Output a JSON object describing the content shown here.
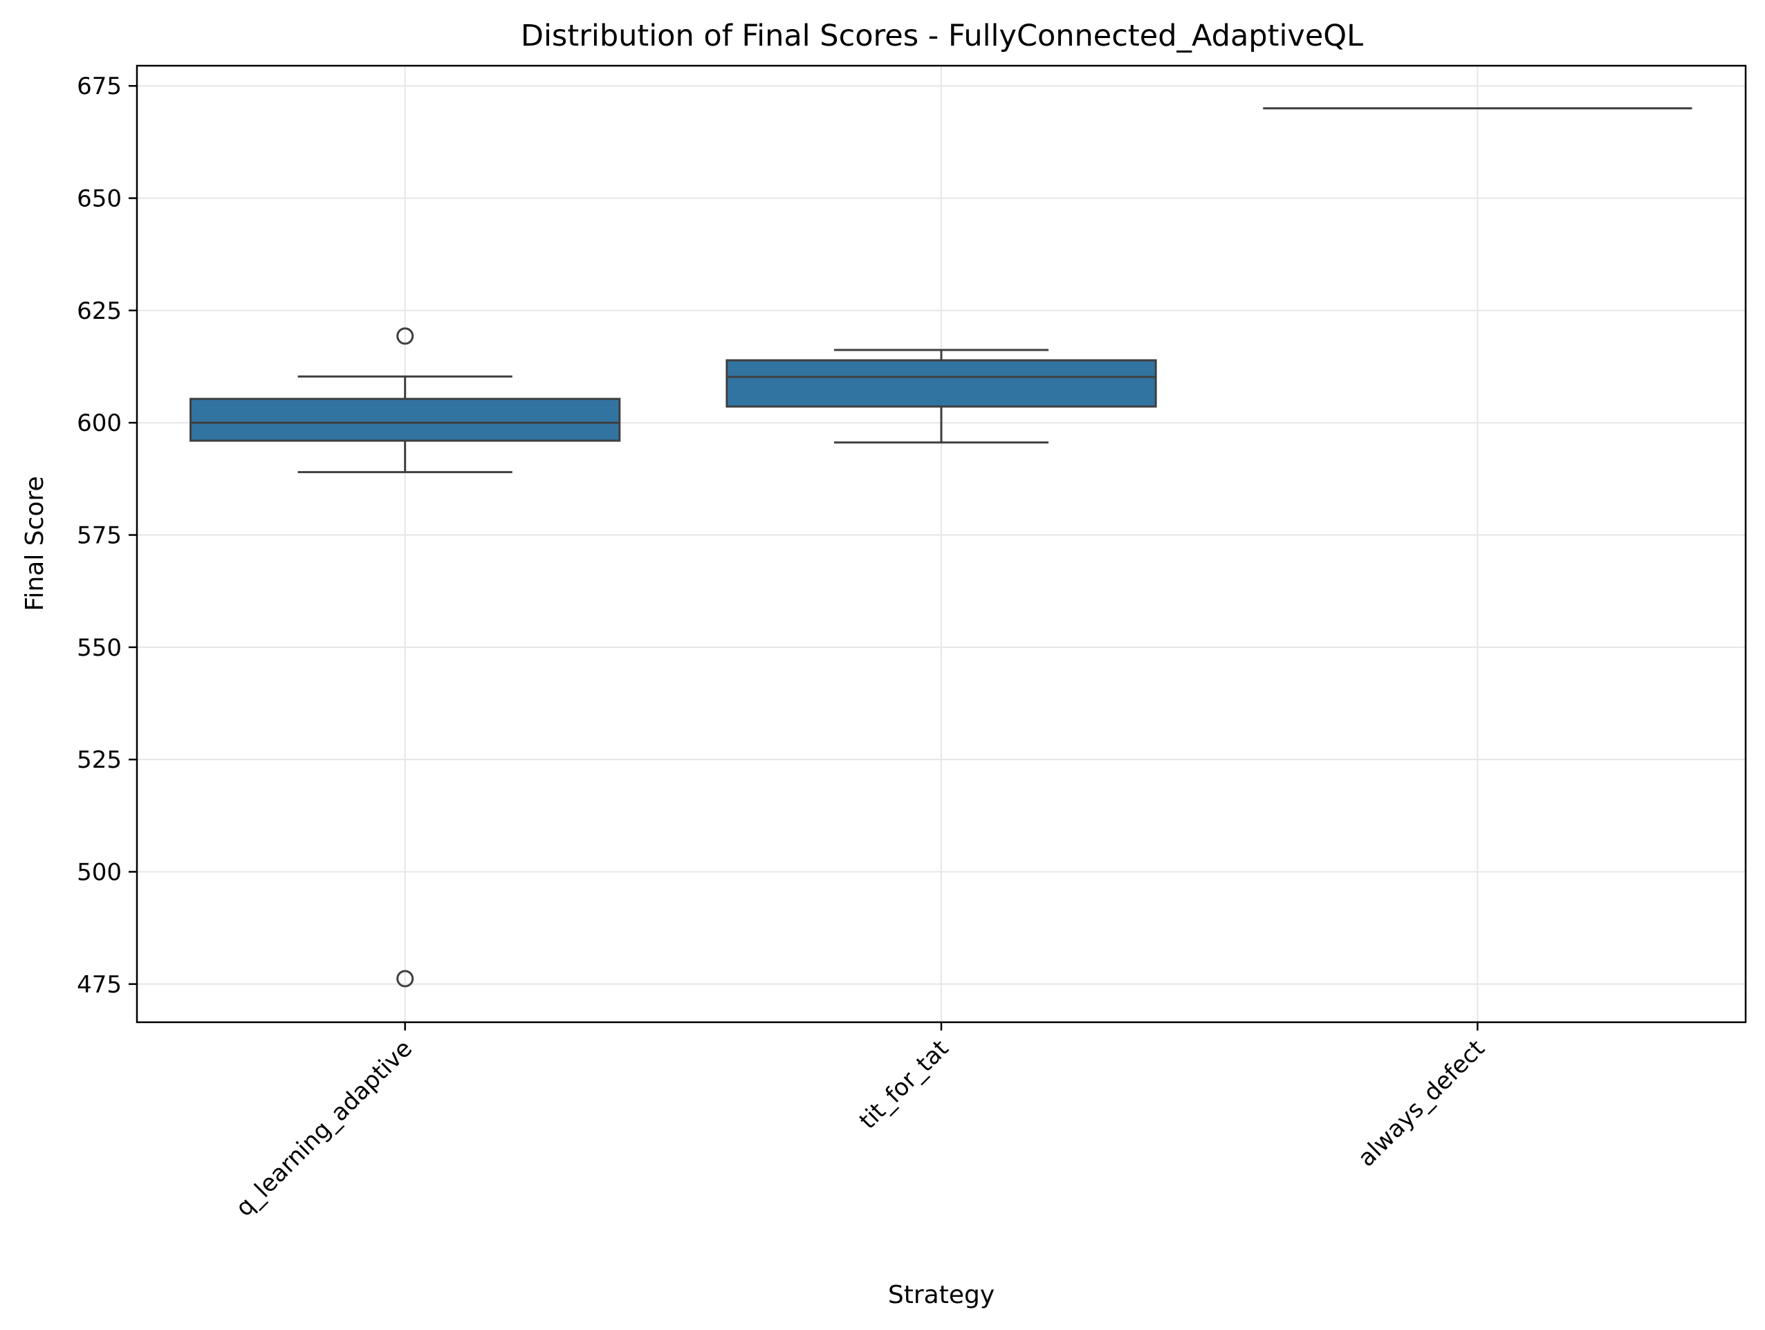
{
  "chart_data": {
    "type": "box",
    "title": "Distribution of Final Scores - FullyConnected_AdaptiveQL",
    "xlabel": "Strategy",
    "ylabel": "Final Score",
    "ylim": [
      466.5,
      679.5
    ],
    "yticks": [
      475,
      500,
      525,
      550,
      575,
      600,
      625,
      650,
      675
    ],
    "grid": true,
    "categories": [
      "q_learning_adaptive",
      "tit_for_tat",
      "always_defect"
    ],
    "boxes": [
      {
        "category": "q_learning_adaptive",
        "whisker_low": 589,
        "q1": 596,
        "median": 600,
        "q3": 605.3,
        "whisker_high": 610.3,
        "outliers": [
          619.3,
          476.2
        ]
      },
      {
        "category": "tit_for_tat",
        "whisker_low": 595.6,
        "q1": 603.6,
        "median": 610.2,
        "q3": 613.9,
        "whisker_high": 616.2,
        "outliers": []
      },
      {
        "category": "always_defect",
        "whisker_low": 670,
        "q1": 670,
        "median": 670,
        "q3": 670,
        "whisker_high": 670,
        "outliers": []
      }
    ],
    "colors": {
      "box_fill": "#3274a1",
      "line": "#3f3f3f",
      "grid": "#e6e6e6",
      "axis": "#000000"
    }
  }
}
